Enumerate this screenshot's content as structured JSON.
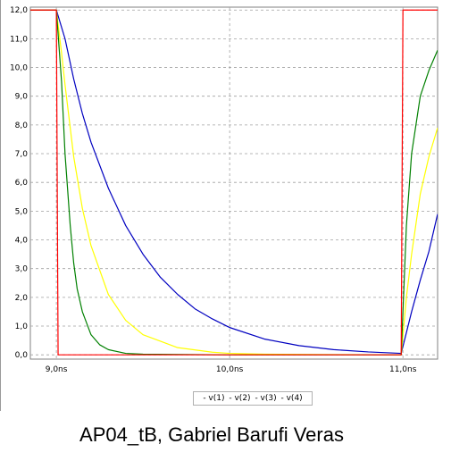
{
  "caption": "AP04_tB, Gabriel Barufi Veras",
  "chart_data": {
    "type": "line",
    "title": "",
    "xlabel": "",
    "ylabel": "",
    "xlim": [
      8.85,
      11.2
    ],
    "ylim": [
      -0.15,
      12.1
    ],
    "grid": true,
    "legend_placement": "bottom-center",
    "x_ticks": [
      {
        "value": 9.0,
        "label": "9,0ns"
      },
      {
        "value": 10.0,
        "label": "10,0ns"
      },
      {
        "value": 11.0,
        "label": "11,0ns"
      }
    ],
    "y_ticks": [
      {
        "value": 0,
        "label": "0,0"
      },
      {
        "value": 1,
        "label": "1,0"
      },
      {
        "value": 2,
        "label": "2,0"
      },
      {
        "value": 3,
        "label": "3,0"
      },
      {
        "value": 4,
        "label": "4,0"
      },
      {
        "value": 5,
        "label": "5,0"
      },
      {
        "value": 6,
        "label": "6,0"
      },
      {
        "value": 7,
        "label": "7,0"
      },
      {
        "value": 8,
        "label": "8,0"
      },
      {
        "value": 9,
        "label": "9,0"
      },
      {
        "value": 10,
        "label": "10,0"
      },
      {
        "value": 11,
        "label": "11,0"
      },
      {
        "value": 12,
        "label": "12,0"
      }
    ],
    "series": [
      {
        "name": "v(1)",
        "legend_label": "- v(1)",
        "color": "#ff0000",
        "x": [
          8.85,
          9.0,
          9.01,
          9.02,
          10.98,
          10.99,
          11.0,
          11.2
        ],
        "y": [
          12.0,
          12.0,
          0.0,
          0.0,
          0.0,
          0.0,
          12.0,
          12.0
        ]
      },
      {
        "name": "v(2)",
        "legend_label": "- v(2)",
        "color": "#008000",
        "x": [
          8.85,
          9.0,
          9.03,
          9.05,
          9.08,
          9.1,
          9.12,
          9.15,
          9.2,
          9.25,
          9.3,
          9.4,
          9.5,
          10.0,
          10.99,
          11.02,
          11.05,
          11.1,
          11.15,
          11.2
        ],
        "y": [
          12.0,
          12.0,
          9.5,
          7.0,
          4.5,
          3.2,
          2.3,
          1.5,
          0.7,
          0.35,
          0.18,
          0.05,
          0.02,
          0.0,
          0.0,
          4.5,
          7.0,
          9.0,
          9.9,
          10.6
        ]
      },
      {
        "name": "v(3)",
        "legend_label": "- v(3)",
        "color": "#ffff00",
        "x": [
          8.85,
          9.0,
          9.03,
          9.05,
          9.1,
          9.15,
          9.2,
          9.3,
          9.4,
          9.5,
          9.7,
          9.9,
          10.0,
          10.2,
          10.5,
          10.99,
          11.02,
          11.05,
          11.1,
          11.15,
          11.2
        ],
        "y": [
          12.0,
          12.0,
          10.5,
          9.4,
          6.9,
          5.1,
          3.8,
          2.1,
          1.2,
          0.7,
          0.25,
          0.09,
          0.05,
          0.02,
          0.01,
          0.0,
          2.0,
          3.5,
          5.6,
          6.9,
          7.9
        ]
      },
      {
        "name": "v(4)",
        "legend_label": "- v(4)",
        "color": "#0000c0",
        "x": [
          8.85,
          9.0,
          9.05,
          9.1,
          9.15,
          9.2,
          9.3,
          9.4,
          9.5,
          9.6,
          9.7,
          9.8,
          9.9,
          10.0,
          10.2,
          10.4,
          10.6,
          10.8,
          10.99,
          11.05,
          11.1,
          11.15,
          11.2
        ],
        "y": [
          12.0,
          12.0,
          11.0,
          9.6,
          8.4,
          7.4,
          5.8,
          4.5,
          3.5,
          2.7,
          2.1,
          1.6,
          1.25,
          0.95,
          0.55,
          0.32,
          0.18,
          0.1,
          0.05,
          1.5,
          2.6,
          3.6,
          4.9
        ]
      }
    ]
  }
}
